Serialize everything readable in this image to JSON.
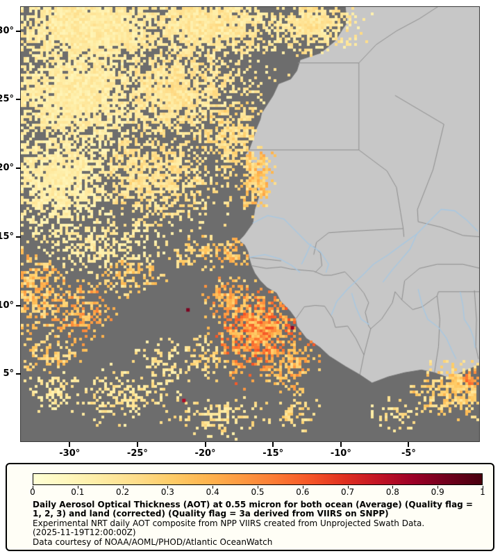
{
  "map": {
    "lat_ticks": [
      {
        "v": 30,
        "label": "30°"
      },
      {
        "v": 25,
        "label": "25°"
      },
      {
        "v": 20,
        "label": "20°"
      },
      {
        "v": 15,
        "label": "15°"
      },
      {
        "v": 10,
        "label": "10°"
      },
      {
        "v": 5,
        "label": "5°"
      }
    ],
    "lon_ticks": [
      {
        "v": -30,
        "label": "-30°"
      },
      {
        "v": -25,
        "label": "-25°"
      },
      {
        "v": -20,
        "label": "-20°"
      },
      {
        "v": -15,
        "label": "-15°"
      },
      {
        "v": -10,
        "label": "-10°"
      },
      {
        "v": -5,
        "label": "-5°"
      }
    ],
    "colors": {
      "ocean_nodata": "#6d6d6d",
      "land": "#c7c7c7",
      "coastline": "#6f6f6f",
      "border": "#8d8d8d",
      "river": "#a6c8e4"
    }
  },
  "legend": {
    "ticks": [
      {
        "v": 0,
        "label": "0"
      },
      {
        "v": 0.1,
        "label": "0.1"
      },
      {
        "v": 0.2,
        "label": "0.2"
      },
      {
        "v": 0.3,
        "label": "0.3"
      },
      {
        "v": 0.4,
        "label": "0.4"
      },
      {
        "v": 0.5,
        "label": "0.5"
      },
      {
        "v": 0.6,
        "label": "0.6"
      },
      {
        "v": 0.7,
        "label": "0.7"
      },
      {
        "v": 0.8,
        "label": "0.8"
      },
      {
        "v": 0.9,
        "label": "0.9"
      },
      {
        "v": 1,
        "label": "1"
      }
    ],
    "colorbar_colors": [
      "#ffffd5",
      "#fff7bc",
      "#feeba2",
      "#fedd8a",
      "#fecc67",
      "#feb54f",
      "#fd9a41",
      "#fc7b34",
      "#f65627",
      "#e03020",
      "#c21424",
      "#9c0026",
      "#70001c",
      "#49000e"
    ],
    "title_bold": "Daily Aerosol Optical Thickness (AOT) at 0.55 micron for both ocean (Average) (Quality flag = 1, 2, 3) and land (corrected) (Quality flag = 3a derived from VIIRS on SNPP)",
    "line_experimental": "Experimental NRT daily AOT composite from NPP VIIRS created from Unprojected Swath Data.",
    "line_timestamp": "(2025-11-19T12:00:00Z)",
    "line_courtesy": "Data courtesy of NOAA/AOML/PHOD/Atlantic OceanWatch"
  },
  "chart_data": {
    "type": "heatmap",
    "title": "Daily Aerosol Optical Thickness (AOT) at 0.55 micron for both ocean (Average) (Quality flag = 1, 2, 3) and land (corrected) (Quality flag = 3a derived from VIIRS on SNPP)",
    "variable": "Aerosol Optical Thickness at 0.55 micron",
    "source": "NPP VIIRS",
    "timestamp": "2025-11-19T12:00:00Z",
    "lon_range": [
      -33.6,
      0.2
    ],
    "lat_range": [
      0.1,
      31.75
    ],
    "colorbar": {
      "min": 0,
      "max": 1,
      "tick_values": [
        0,
        0.1,
        0.2,
        0.3,
        0.4,
        0.5,
        0.6,
        0.7,
        0.8,
        0.9,
        1
      ]
    },
    "legend_position": "bottom",
    "nodata_regions": "dark gray over ocean where no retrieval; light gray land base map with borders and rivers",
    "regions": [
      {
        "lon": -28.5,
        "lat": 30.3,
        "rlon": 9,
        "rlat": 4,
        "aot": 0.17,
        "cov": 0.95
      },
      {
        "lon": -20,
        "lat": 30.5,
        "rlon": 7,
        "rlat": 3,
        "aot": 0.19,
        "cov": 0.9
      },
      {
        "lon": -12.5,
        "lat": 30.6,
        "rlon": 4,
        "rlat": 2.2,
        "aot": 0.2,
        "cov": 0.85,
        "land": 1
      },
      {
        "lon": -29.5,
        "lat": 25.5,
        "rlon": 8,
        "rlat": 5,
        "aot": 0.16,
        "cov": 0.88
      },
      {
        "lon": -22.5,
        "lat": 25.5,
        "rlon": 7,
        "rlat": 4.5,
        "aot": 0.2,
        "cov": 0.78
      },
      {
        "lon": -31,
        "lat": 19.5,
        "rlon": 6,
        "rlat": 5,
        "aot": 0.15,
        "cov": 0.8
      },
      {
        "lon": -24,
        "lat": 19.5,
        "rlon": 6.5,
        "rlat": 4,
        "aot": 0.22,
        "cov": 0.7
      },
      {
        "lon": -18.3,
        "lat": 22.5,
        "rlon": 3.5,
        "rlat": 3.5,
        "aot": 0.24,
        "cov": 0.7
      },
      {
        "lon": -16.3,
        "lat": 19.5,
        "rlon": 1.4,
        "rlat": 3,
        "aot": 0.33,
        "cov": 0.85,
        "land": 1
      },
      {
        "lon": -28,
        "lat": 14.5,
        "rlon": 6,
        "rlat": 3,
        "aot": 0.17,
        "cov": 0.5
      },
      {
        "lon": -20.5,
        "lat": 13.8,
        "rlon": 2.5,
        "rlat": 1.5,
        "aot": 0.3,
        "cov": 0.5
      },
      {
        "lon": -32.5,
        "lat": 11,
        "rlon": 3,
        "rlat": 3.5,
        "aot": 0.35,
        "cov": 0.65
      },
      {
        "lon": -29.5,
        "lat": 9.5,
        "rlon": 3,
        "rlat": 2.5,
        "aot": 0.4,
        "cov": 0.6
      },
      {
        "lon": -31.5,
        "lat": 6.5,
        "rlon": 2.5,
        "rlat": 2,
        "aot": 0.3,
        "cov": 0.5
      },
      {
        "lon": -25.8,
        "lat": 12.3,
        "rlon": 2.8,
        "rlat": 2,
        "aot": 0.3,
        "cov": 0.5
      },
      {
        "lon": -17.9,
        "lat": 13.9,
        "rlon": 1.6,
        "rlat": 1.4,
        "aot": 0.35,
        "cov": 0.6
      },
      {
        "lon": -16,
        "lat": 8,
        "rlon": 3.8,
        "rlat": 3.3,
        "aot": 0.48,
        "cov": 0.85
      },
      {
        "lon": -18,
        "lat": 10.2,
        "rlon": 2.4,
        "rlat": 1.8,
        "aot": 0.4,
        "cov": 0.7
      },
      {
        "lon": -13.9,
        "lat": 5.8,
        "rlon": 2.2,
        "rlat": 2.2,
        "aot": 0.38,
        "cov": 0.65
      },
      {
        "lon": -19.8,
        "lat": 6.3,
        "rlon": 2,
        "rlat": 1.8,
        "aot": 0.26,
        "cov": 0.5
      },
      {
        "lon": -26,
        "lat": 3.5,
        "rlon": 4.5,
        "rlat": 2.2,
        "aot": 0.2,
        "cov": 0.45
      },
      {
        "lon": -18.8,
        "lat": 2,
        "rlon": 4,
        "rlat": 1.7,
        "aot": 0.22,
        "cov": 0.45
      },
      {
        "lon": -22.8,
        "lat": 5.8,
        "rlon": 3,
        "rlat": 1.8,
        "aot": 0.2,
        "cov": 0.4
      },
      {
        "lon": -30.8,
        "lat": 3.8,
        "rlon": 2.5,
        "rlat": 2,
        "aot": 0.18,
        "cov": 0.4
      },
      {
        "lon": -13,
        "lat": 2.2,
        "rlon": 2,
        "rlat": 1.5,
        "aot": 0.25,
        "cov": 0.4
      },
      {
        "lon": -1.2,
        "lat": 3.9,
        "rlon": 3.2,
        "rlat": 2.2,
        "aot": 0.3,
        "cov": 0.8,
        "land": 1
      },
      {
        "lon": -0.5,
        "lat": 4.5,
        "rlon": 1.6,
        "rlat": 1,
        "aot": 0.48,
        "cov": 0.9,
        "land": 1
      },
      {
        "lon": -5.8,
        "lat": 2,
        "rlon": 2,
        "rlat": 1.3,
        "aot": 0.22,
        "cov": 0.45
      }
    ],
    "specks": [
      {
        "lon": -21.3,
        "lat": 9.7,
        "aot": 0.9
      },
      {
        "lon": -21.6,
        "lat": 3.1,
        "aot": 0.8
      },
      {
        "lon": -13.6,
        "lat": 8.4,
        "aot": 0.85
      }
    ]
  }
}
